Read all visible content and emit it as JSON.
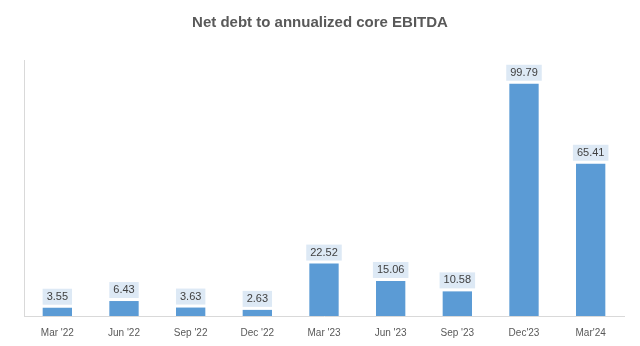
{
  "chart_data": {
    "type": "bar",
    "title": "Net debt to annualized core EBITDA",
    "categories": [
      "Mar '22",
      "Jun '22",
      "Sep '22",
      "Dec '22",
      "Mar '23",
      "Jun '23",
      "Sep '23",
      "Dec'23",
      "Mar'24"
    ],
    "values": [
      3.55,
      6.43,
      3.63,
      2.63,
      22.52,
      15.06,
      10.58,
      99.79,
      65.41
    ],
    "color": "#5b9bd5",
    "ylim": [
      0,
      110
    ],
    "grid": false,
    "legend": false,
    "data_labels": true,
    "tick_labels": "x"
  }
}
